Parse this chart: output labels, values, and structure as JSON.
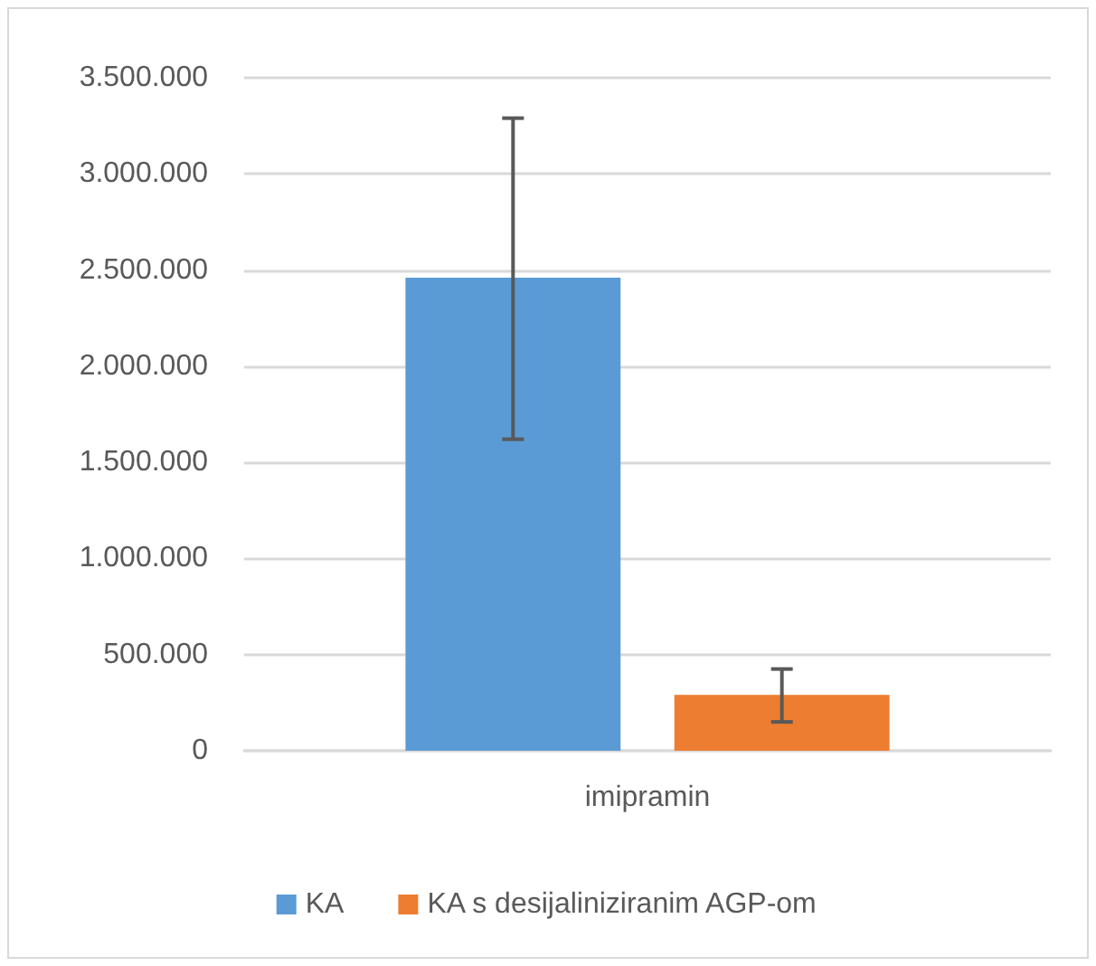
{
  "chart_data": {
    "type": "bar",
    "categories": [
      "imipramin"
    ],
    "series": [
      {
        "name": "KA",
        "color": "#5b9bd5",
        "values": [
          2460000
        ],
        "errors": [
          [
            1620000,
            3290000
          ]
        ]
      },
      {
        "name": "KA s desijaliniziranim AGP-om",
        "color": "#ed7d31",
        "values": [
          290000
        ],
        "errors": [
          [
            150000,
            425000
          ]
        ]
      }
    ],
    "ylim": [
      0,
      3500000
    ],
    "yticks": [
      {
        "value": 0,
        "label": "0"
      },
      {
        "value": 500000,
        "label": "500.000"
      },
      {
        "value": 1000000,
        "label": "1.000.000"
      },
      {
        "value": 1500000,
        "label": "1.500.000"
      },
      {
        "value": 2000000,
        "label": "2.000.000"
      },
      {
        "value": 2500000,
        "label": "2.500.000"
      },
      {
        "value": 3000000,
        "label": "3.000.000"
      },
      {
        "value": 3500000,
        "label": "3.500.000"
      }
    ],
    "grid": "y",
    "legend": "bottom"
  }
}
